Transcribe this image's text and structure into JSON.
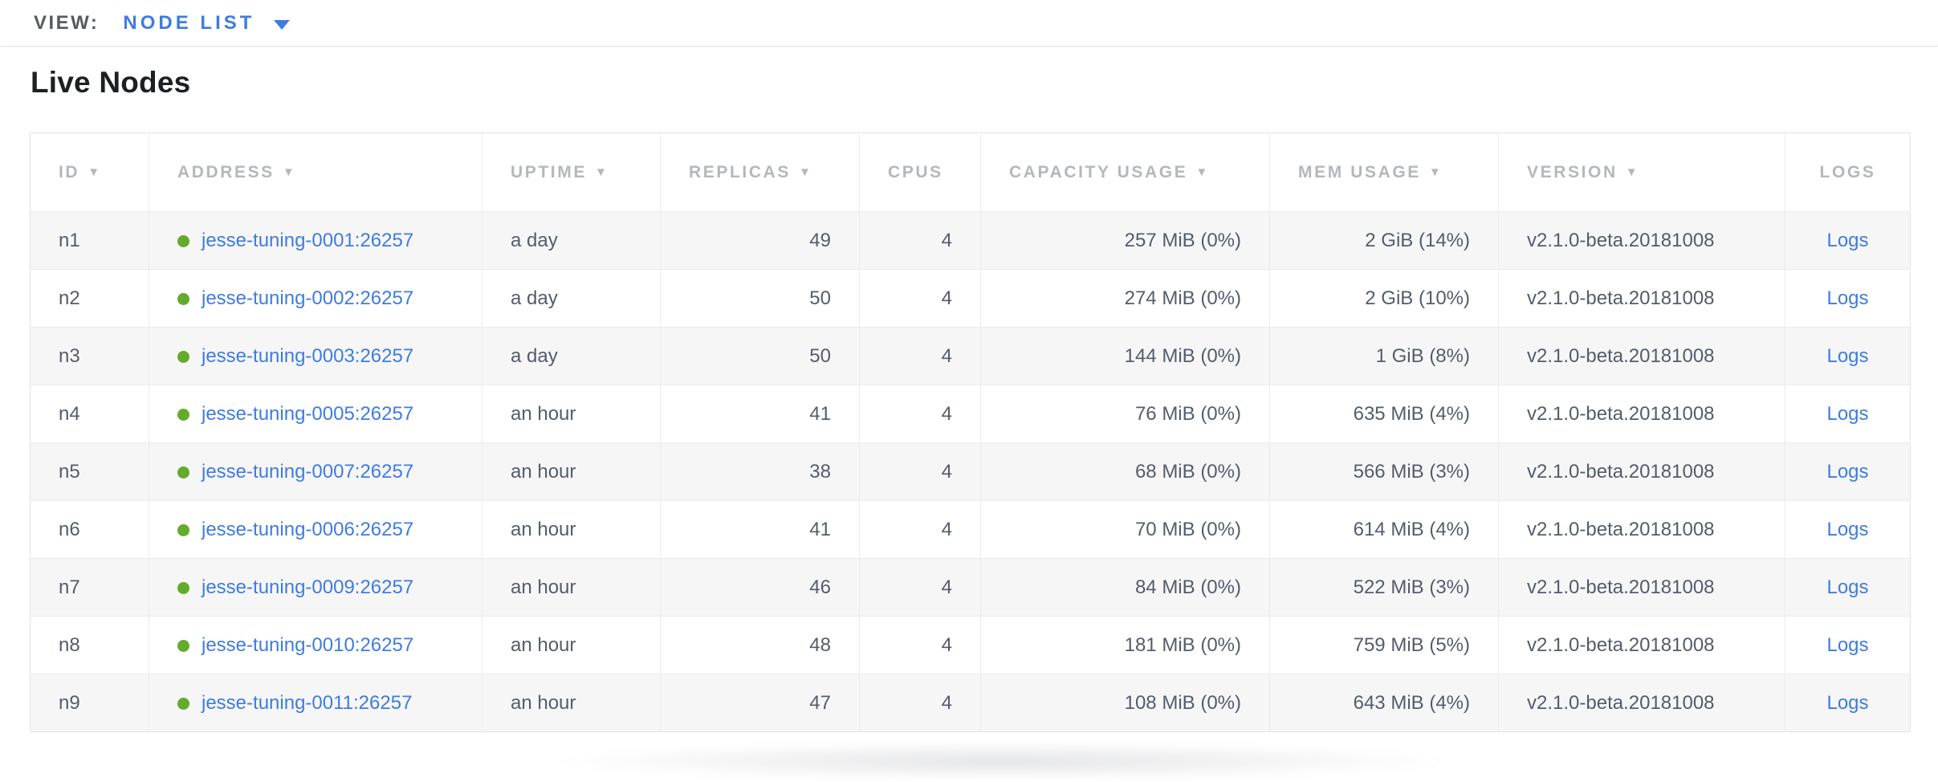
{
  "theme": {
    "link": "#3e7ce0",
    "green": "#64ab2c",
    "heading": "#1c1f24",
    "text": "#545c6b",
    "header-text": "#b4b7bc",
    "topbar-label": "#565b63",
    "stripe": "#f6f6f7"
  },
  "toolbar": {
    "view_label": "VIEW:",
    "view_value": "NODE LIST"
  },
  "page": {
    "title": "Live Nodes"
  },
  "table": {
    "sort_icon": "▼",
    "columns": [
      {
        "key": "id",
        "label": "ID",
        "sortable": true
      },
      {
        "key": "address",
        "label": "ADDRESS",
        "sortable": true
      },
      {
        "key": "uptime",
        "label": "UPTIME",
        "sortable": true
      },
      {
        "key": "replicas",
        "label": "REPLICAS",
        "sortable": true
      },
      {
        "key": "cpus",
        "label": "CPUS",
        "sortable": false
      },
      {
        "key": "capacity",
        "label": "CAPACITY USAGE",
        "sortable": true
      },
      {
        "key": "mem",
        "label": "MEM USAGE",
        "sortable": true
      },
      {
        "key": "version",
        "label": "VERSION",
        "sortable": true
      },
      {
        "key": "logs",
        "label": "LOGS",
        "sortable": false
      }
    ],
    "rows": [
      {
        "id": "n1",
        "address": "jesse-tuning-0001:26257",
        "uptime": "a day",
        "replicas": "49",
        "cpus": "4",
        "capacity": "257 MiB (0%)",
        "mem": "2 GiB (14%)",
        "version": "v2.1.0-beta.20181008",
        "logs": "Logs"
      },
      {
        "id": "n2",
        "address": "jesse-tuning-0002:26257",
        "uptime": "a day",
        "replicas": "50",
        "cpus": "4",
        "capacity": "274 MiB (0%)",
        "mem": "2 GiB (10%)",
        "version": "v2.1.0-beta.20181008",
        "logs": "Logs"
      },
      {
        "id": "n3",
        "address": "jesse-tuning-0003:26257",
        "uptime": "a day",
        "replicas": "50",
        "cpus": "4",
        "capacity": "144 MiB (0%)",
        "mem": "1 GiB (8%)",
        "version": "v2.1.0-beta.20181008",
        "logs": "Logs"
      },
      {
        "id": "n4",
        "address": "jesse-tuning-0005:26257",
        "uptime": "an hour",
        "replicas": "41",
        "cpus": "4",
        "capacity": "76 MiB (0%)",
        "mem": "635 MiB (4%)",
        "version": "v2.1.0-beta.20181008",
        "logs": "Logs"
      },
      {
        "id": "n5",
        "address": "jesse-tuning-0007:26257",
        "uptime": "an hour",
        "replicas": "38",
        "cpus": "4",
        "capacity": "68 MiB (0%)",
        "mem": "566 MiB (3%)",
        "version": "v2.1.0-beta.20181008",
        "logs": "Logs"
      },
      {
        "id": "n6",
        "address": "jesse-tuning-0006:26257",
        "uptime": "an hour",
        "replicas": "41",
        "cpus": "4",
        "capacity": "70 MiB (0%)",
        "mem": "614 MiB (4%)",
        "version": "v2.1.0-beta.20181008",
        "logs": "Logs"
      },
      {
        "id": "n7",
        "address": "jesse-tuning-0009:26257",
        "uptime": "an hour",
        "replicas": "46",
        "cpus": "4",
        "capacity": "84 MiB (0%)",
        "mem": "522 MiB (3%)",
        "version": "v2.1.0-beta.20181008",
        "logs": "Logs"
      },
      {
        "id": "n8",
        "address": "jesse-tuning-0010:26257",
        "uptime": "an hour",
        "replicas": "48",
        "cpus": "4",
        "capacity": "181 MiB (0%)",
        "mem": "759 MiB (5%)",
        "version": "v2.1.0-beta.20181008",
        "logs": "Logs"
      },
      {
        "id": "n9",
        "address": "jesse-tuning-0011:26257",
        "uptime": "an hour",
        "replicas": "47",
        "cpus": "4",
        "capacity": "108 MiB (0%)",
        "mem": "643 MiB (4%)",
        "version": "v2.1.0-beta.20181008",
        "logs": "Logs"
      }
    ]
  }
}
